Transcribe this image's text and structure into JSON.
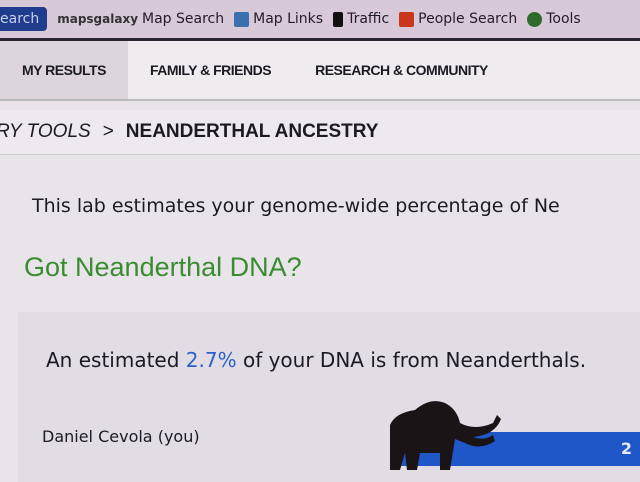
{
  "toolbar": {
    "search_label": "earch",
    "items": [
      {
        "icon": "mapsgalaxy-logo",
        "brand": "mapsgalaxy",
        "label": "Map Search"
      },
      {
        "icon": "map-links-icon",
        "label": "Map Links"
      },
      {
        "icon": "traffic-light-icon",
        "label": "Traffic"
      },
      {
        "icon": "people-search-icon",
        "label": "People Search"
      },
      {
        "icon": "gear-icon",
        "label": "Tools"
      }
    ]
  },
  "tabs": [
    {
      "label": "MY RESULTS",
      "active": true
    },
    {
      "label": "FAMILY & FRIENDS"
    },
    {
      "label": "RESEARCH & COMMUNITY"
    }
  ],
  "breadcrumb": {
    "parent": "RY TOOLS",
    "separator": ">",
    "current": "NEANDERTHAL ANCESTRY"
  },
  "intro": "This lab estimates your genome-wide percentage of Ne",
  "heading": "Got Neanderthal DNA?",
  "estimate": {
    "prefix": "An estimated ",
    "percent": "2.7%",
    "suffix": " of your DNA is from Neanderthals."
  },
  "result": {
    "name": "Daniel Cevola (you)",
    "bar_label": "2",
    "value_percent": 2.7,
    "bar_color": "#1f57c8"
  }
}
